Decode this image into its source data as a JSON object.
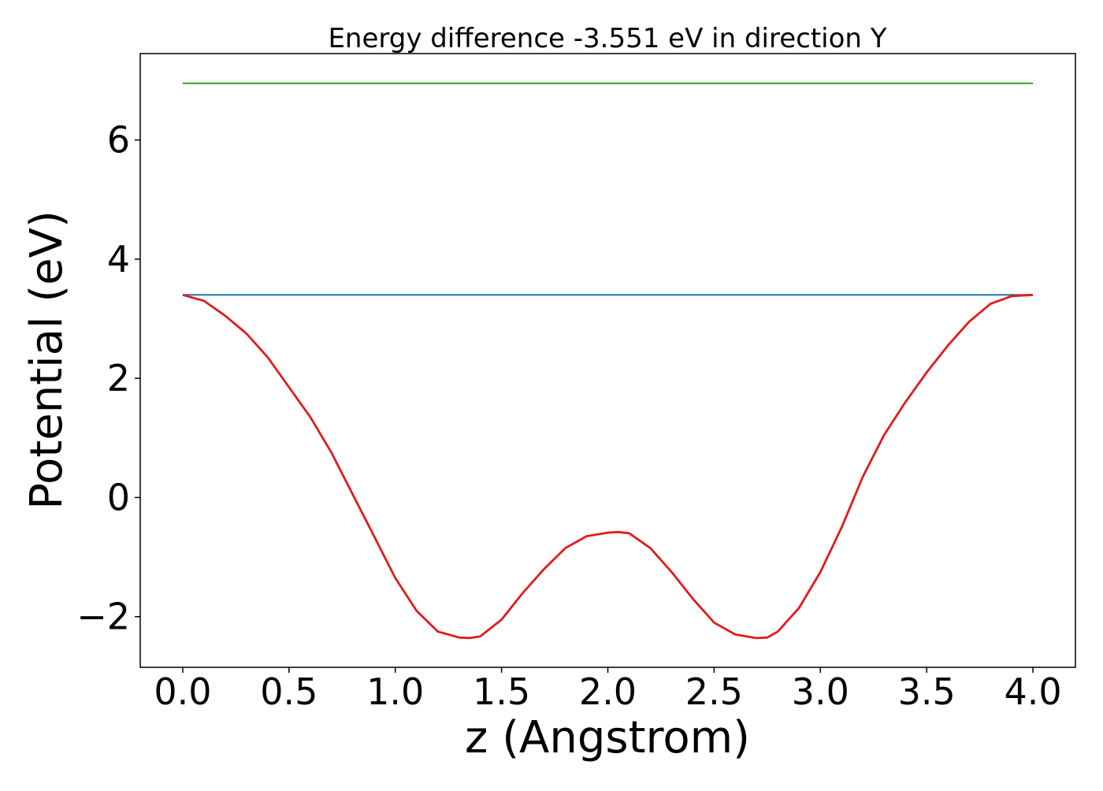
{
  "chart_data": {
    "type": "line",
    "title": "Energy difference -3.551 eV in direction Y",
    "xlabel": "z (Angstrom)",
    "ylabel": "Potential (eV)",
    "xlim": [
      -0.2,
      4.2
    ],
    "ylim": [
      -2.85,
      7.45
    ],
    "xticks": [
      0.0,
      0.5,
      1.0,
      1.5,
      2.0,
      2.5,
      3.0,
      3.5,
      4.0
    ],
    "xtick_labels": [
      "0.0",
      "0.5",
      "1.0",
      "1.5",
      "2.0",
      "2.5",
      "3.0",
      "3.5",
      "4.0"
    ],
    "yticks": [
      -2,
      0,
      2,
      4,
      6
    ],
    "ytick_labels": [
      "−2",
      "0",
      "2",
      "4",
      "6"
    ],
    "grid": false,
    "series": [
      {
        "color": "#2ca02c",
        "x": [
          0.0,
          4.0
        ],
        "y": [
          6.95,
          6.95
        ]
      },
      {
        "color": "#1f77b4",
        "x": [
          0.0,
          4.0
        ],
        "y": [
          3.4,
          3.4
        ]
      },
      {
        "color": "#e31a1c",
        "x": [
          0.0,
          0.1,
          0.2,
          0.3,
          0.4,
          0.5,
          0.6,
          0.7,
          0.8,
          0.9,
          1.0,
          1.1,
          1.2,
          1.3,
          1.35,
          1.4,
          1.5,
          1.6,
          1.7,
          1.8,
          1.9,
          2.0,
          2.05,
          2.1,
          2.2,
          2.3,
          2.4,
          2.5,
          2.6,
          2.7,
          2.75,
          2.8,
          2.9,
          3.0,
          3.1,
          3.2,
          3.3,
          3.4,
          3.5,
          3.6,
          3.7,
          3.8,
          3.9,
          4.0
        ],
        "y": [
          3.4,
          3.3,
          3.05,
          2.75,
          2.35,
          1.85,
          1.35,
          0.75,
          0.05,
          -0.65,
          -1.35,
          -1.9,
          -2.25,
          -2.35,
          -2.36,
          -2.33,
          -2.05,
          -1.6,
          -1.2,
          -0.85,
          -0.65,
          -0.59,
          -0.58,
          -0.6,
          -0.85,
          -1.25,
          -1.7,
          -2.1,
          -2.3,
          -2.36,
          -2.35,
          -2.25,
          -1.85,
          -1.25,
          -0.5,
          0.35,
          1.05,
          1.6,
          2.1,
          2.55,
          2.95,
          3.25,
          3.38,
          3.4
        ]
      }
    ]
  }
}
